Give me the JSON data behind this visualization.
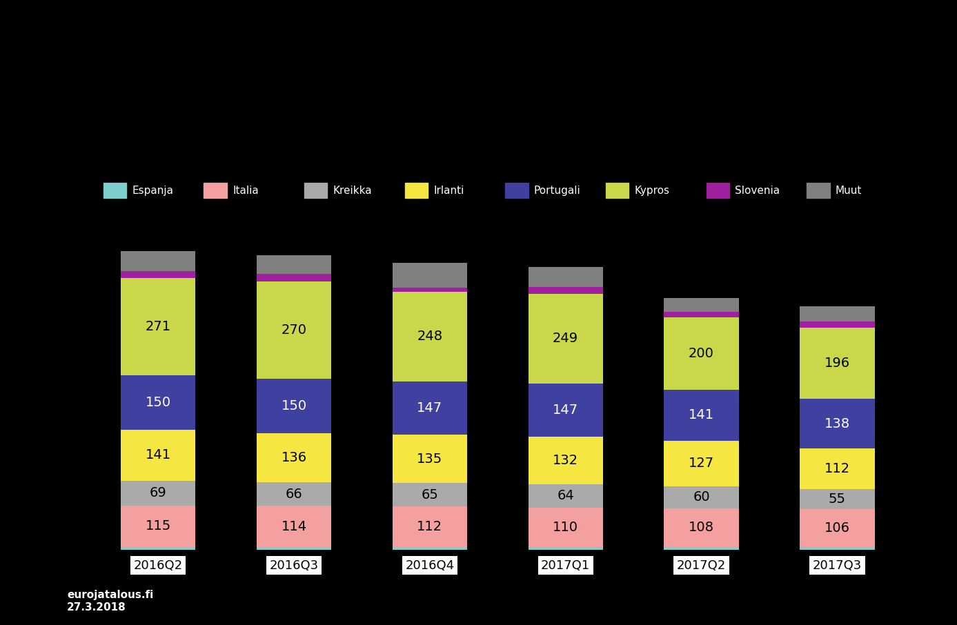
{
  "categories": [
    "2016Q2",
    "2016Q3",
    "2016Q4",
    "2017Q1",
    "2017Q2",
    "2017Q3"
  ],
  "segments": [
    {
      "label": "Espanja",
      "color": "#7ecece",
      "values": [
        8,
        8,
        8,
        8,
        8,
        8
      ]
    },
    {
      "label": "Italia",
      "color": "#f4a0a0",
      "values": [
        115,
        114,
        112,
        110,
        108,
        106
      ]
    },
    {
      "label": "Kreikka",
      "color": "#aaaaaa",
      "values": [
        69,
        66,
        65,
        64,
        60,
        55
      ]
    },
    {
      "label": "Irlanti",
      "color": "#f5e642",
      "values": [
        141,
        136,
        135,
        132,
        127,
        112
      ]
    },
    {
      "label": "Portugali",
      "color": "#4040a0",
      "values": [
        150,
        150,
        147,
        147,
        141,
        138
      ]
    },
    {
      "label": "Kypros",
      "color": "#c8d84a",
      "values": [
        271,
        270,
        248,
        249,
        200,
        196
      ]
    },
    {
      "label": "Slovenia",
      "color": "#a020a0",
      "values": [
        18,
        20,
        12,
        18,
        16,
        18
      ]
    },
    {
      "label": "Muut",
      "color": "#808080",
      "values": [
        55,
        52,
        68,
        55,
        38,
        42
      ]
    }
  ],
  "label_segments": [
    1,
    2,
    3,
    4,
    5
  ],
  "label_text_colors": [
    "black",
    "black",
    "black",
    "white",
    "black"
  ],
  "background_color": "#000000",
  "text_color": "#ffffff",
  "bar_width": 0.55,
  "source_text": "eurojatalous.fi\n27.3.2018"
}
